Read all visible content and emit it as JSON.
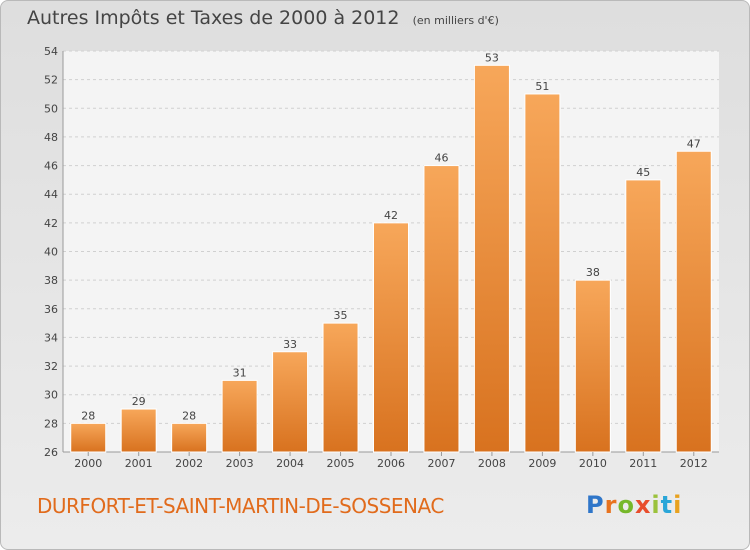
{
  "header": {
    "title": "Autres Impôts et Taxes de 2000 à 2012",
    "subtitle": "(en milliers d'€)"
  },
  "footer": {
    "commune": "DURFORT-ET-SAINT-MARTIN-DE-SOSSENAC",
    "logo": {
      "letters": [
        "P",
        "r",
        "o",
        "x",
        "i",
        "t",
        "i"
      ],
      "colors": [
        "#2f76c9",
        "#e8731f",
        "#76b82a",
        "#e84d2c",
        "#9bc23c",
        "#2aa6d8",
        "#e8a21f"
      ]
    }
  },
  "colors": {
    "bar_top": "#f7a75a",
    "bar_bottom": "#d8721f",
    "bar_stroke": "#ffffff",
    "grid": "#d0d0d0",
    "axis_text": "#444444",
    "plot_bg": "#f4f4f4",
    "commune_text": "#e16b1c"
  },
  "chart_data": {
    "type": "bar",
    "categories": [
      "2000",
      "2001",
      "2002",
      "2003",
      "2004",
      "2005",
      "2006",
      "2007",
      "2008",
      "2009",
      "2010",
      "2011",
      "2012"
    ],
    "values": [
      28,
      29,
      28,
      31,
      33,
      35,
      42,
      46,
      53,
      51,
      38,
      45,
      47
    ],
    "title": "Autres Impôts et Taxes de 2000 à 2012",
    "subtitle": "(en milliers d'€)",
    "xlabel": "",
    "ylabel": "",
    "ylim": [
      26,
      54
    ],
    "yticks": [
      26,
      28,
      30,
      32,
      34,
      36,
      38,
      40,
      42,
      44,
      46,
      48,
      50,
      52,
      54
    ],
    "grid": true,
    "data_labels": true
  }
}
